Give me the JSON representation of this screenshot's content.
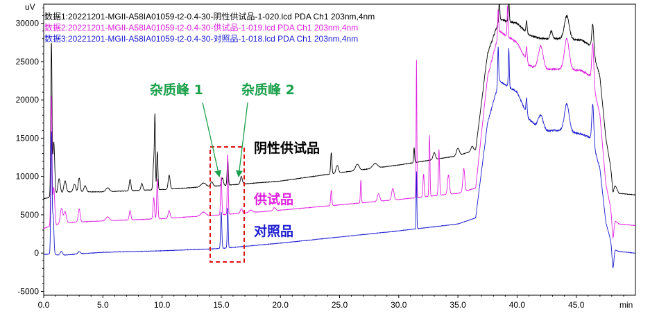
{
  "chart_data": {
    "type": "line",
    "y_unit": "uV",
    "x_unit": "min",
    "xlim": [
      0,
      50
    ],
    "ylim": [
      -5500,
      32500
    ],
    "x_ticks": [
      "0.0",
      "5.0",
      "10.0",
      "15.0",
      "20.0",
      "25.0",
      "30.0",
      "35.0",
      "40.0",
      "45.0"
    ],
    "x_tick_values": [
      0,
      5,
      10,
      15,
      20,
      25,
      30,
      35,
      40,
      45
    ],
    "y_ticks": [
      "-5000",
      "0",
      "5000",
      "10000",
      "15000",
      "20000",
      "25000",
      "30000"
    ],
    "y_tick_values": [
      -5000,
      0,
      5000,
      10000,
      15000,
      20000,
      25000,
      30000
    ],
    "legend_placement": "top-left",
    "legend": [
      "数据1:20221201-MGII-A58IA01059-t2-0.4-30-阴性供试品-1-020.lcd PDA Ch1 203nm,4nm",
      "数据2:20221201-MGII-A58IA01059-t2-0.4-30-供试品-1-019.lcd PDA Ch1 203nm,4nm",
      "数据3:20221201-MGII-A58IA01059-t2-0.4-30-对照品-1-018.lcd PDA Ch1 203nm,4nm"
    ],
    "series": [
      {
        "name": "阴性供试品",
        "color": "#000000",
        "baseline": [
          [
            0,
            7100
          ],
          [
            0.3,
            7200
          ],
          [
            0.6,
            7400
          ],
          [
            2,
            8000
          ],
          [
            5,
            8000
          ],
          [
            10,
            8300
          ],
          [
            15,
            8800
          ],
          [
            20,
            9400
          ],
          [
            25,
            10500
          ],
          [
            30,
            11500
          ],
          [
            35,
            12700
          ],
          [
            36.5,
            13500
          ],
          [
            37.5,
            26000
          ],
          [
            38.5,
            30500
          ],
          [
            40,
            30000
          ],
          [
            41,
            28500
          ],
          [
            42,
            28000
          ],
          [
            44,
            28000
          ],
          [
            45.5,
            27800
          ],
          [
            46.3,
            27000
          ],
          [
            47,
            23000
          ],
          [
            47.5,
            15000
          ],
          [
            48.1,
            9500
          ],
          [
            48.6,
            7800
          ],
          [
            50,
            7600
          ]
        ],
        "peaks": [
          [
            0.65,
            20000,
            0.05
          ],
          [
            0.85,
            7000,
            0.08
          ],
          [
            1.3,
            2000,
            0.1
          ],
          [
            1.8,
            1500,
            0.1
          ],
          [
            2.6,
            1000,
            0.1
          ],
          [
            3.0,
            1800,
            0.08
          ],
          [
            3.5,
            800,
            0.1
          ],
          [
            5.4,
            500,
            0.15
          ],
          [
            7.3,
            1500,
            0.07
          ],
          [
            8.3,
            900,
            0.08
          ],
          [
            9.3,
            3800,
            0.06
          ],
          [
            9.6,
            5000,
            0.05
          ],
          [
            9.4,
            9000,
            0.04
          ],
          [
            10.6,
            1800,
            0.08
          ],
          [
            13.5,
            500,
            0.2
          ],
          [
            14.2,
            600,
            0.1
          ],
          [
            15.1,
            1000,
            0.08
          ],
          [
            15.55,
            3500,
            0.05
          ],
          [
            16.7,
            1000,
            0.08
          ],
          [
            24.3,
            2800,
            0.05
          ],
          [
            24.8,
            1000,
            0.1
          ],
          [
            26.5,
            800,
            0.15
          ],
          [
            28,
            600,
            0.2
          ],
          [
            31.3,
            2000,
            0.04
          ],
          [
            33,
            900,
            0.1
          ],
          [
            35,
            1000,
            0.12
          ],
          [
            36.2,
            600,
            0.1
          ],
          [
            38.5,
            3000,
            0.04
          ],
          [
            39.3,
            3000,
            0.04
          ],
          [
            40.8,
            1500,
            0.05
          ],
          [
            42.9,
            1000,
            0.1
          ],
          [
            44.2,
            3000,
            0.2
          ],
          [
            46.4,
            3500,
            0.08
          ],
          [
            48.1,
            -1500,
            0.08
          ]
        ]
      },
      {
        "name": "供试品",
        "color": "#e020e0",
        "baseline": [
          [
            0,
            3200
          ],
          [
            0.3,
            3400
          ],
          [
            0.6,
            3500
          ],
          [
            2,
            4000
          ],
          [
            5,
            4200
          ],
          [
            10,
            4500
          ],
          [
            15,
            5000
          ],
          [
            20,
            5600
          ],
          [
            25,
            6300
          ],
          [
            30,
            7000
          ],
          [
            35,
            7800
          ],
          [
            36.5,
            8500
          ],
          [
            37.5,
            23000
          ],
          [
            38.5,
            29000
          ],
          [
            40,
            27500
          ],
          [
            41,
            24500
          ],
          [
            42,
            24000
          ],
          [
            44,
            24000
          ],
          [
            45.5,
            23800
          ],
          [
            46.3,
            23000
          ],
          [
            47,
            18000
          ],
          [
            47.5,
            9000
          ],
          [
            48.1,
            4500
          ],
          [
            48.6,
            3800
          ],
          [
            50,
            3600
          ]
        ],
        "peaks": [
          [
            0.65,
            17000,
            0.05
          ],
          [
            0.85,
            5000,
            0.08
          ],
          [
            1.5,
            2000,
            0.1
          ],
          [
            1.8,
            1500,
            0.1
          ],
          [
            3.0,
            1700,
            0.08
          ],
          [
            5.4,
            500,
            0.15
          ],
          [
            7.3,
            1200,
            0.07
          ],
          [
            9.3,
            2800,
            0.06
          ],
          [
            9.6,
            5200,
            0.05
          ],
          [
            10.6,
            1000,
            0.08
          ],
          [
            13.5,
            500,
            0.2
          ],
          [
            15.0,
            5000,
            0.05
          ],
          [
            15.55,
            8000,
            0.04
          ],
          [
            16.7,
            600,
            0.08
          ],
          [
            17.5,
            300,
            0.15
          ],
          [
            19.5,
            400,
            0.1
          ],
          [
            24.3,
            2000,
            0.05
          ],
          [
            26.8,
            3000,
            0.04
          ],
          [
            28.3,
            1000,
            0.1
          ],
          [
            29.5,
            1500,
            0.1
          ],
          [
            31.5,
            18000,
            0.03
          ],
          [
            32.1,
            3000,
            0.05
          ],
          [
            32.6,
            8000,
            0.04
          ],
          [
            33.4,
            6000,
            0.05
          ],
          [
            34.2,
            2500,
            0.08
          ],
          [
            35.5,
            3000,
            0.08
          ],
          [
            38.4,
            3500,
            0.04
          ],
          [
            39.2,
            4000,
            0.04
          ],
          [
            40.8,
            1800,
            0.05
          ],
          [
            42,
            3000,
            0.2
          ],
          [
            44.2,
            4000,
            0.2
          ],
          [
            46.4,
            5000,
            0.08
          ],
          [
            48.1,
            -2500,
            0.08
          ]
        ]
      },
      {
        "name": "对照品",
        "color": "#1a1ad0",
        "baseline": [
          [
            0,
            -200
          ],
          [
            0.5,
            -100
          ],
          [
            1.5,
            -300
          ],
          [
            3,
            -100
          ],
          [
            5,
            100
          ],
          [
            10,
            300
          ],
          [
            15,
            600
          ],
          [
            20,
            1300
          ],
          [
            25,
            2100
          ],
          [
            30,
            2900
          ],
          [
            35,
            3800
          ],
          [
            36.5,
            4600
          ],
          [
            37.5,
            17000
          ],
          [
            38.5,
            22500
          ],
          [
            40,
            21000
          ],
          [
            41,
            17500
          ],
          [
            42,
            16000
          ],
          [
            44,
            16000
          ],
          [
            45.5,
            15500
          ],
          [
            46.3,
            15000
          ],
          [
            47,
            11000
          ],
          [
            47.5,
            4000
          ],
          [
            48.1,
            600
          ],
          [
            48.6,
            200
          ],
          [
            50,
            0
          ]
        ],
        "peaks": [
          [
            0.65,
            16000,
            0.05
          ],
          [
            0.8,
            5000,
            0.06
          ],
          [
            1.5,
            500,
            0.1
          ],
          [
            3,
            300,
            0.1
          ],
          [
            15.0,
            4800,
            0.05
          ],
          [
            15.55,
            5300,
            0.04
          ],
          [
            31.5,
            7500,
            0.03
          ],
          [
            38.4,
            5000,
            0.04
          ],
          [
            39.3,
            5000,
            0.04
          ],
          [
            40.8,
            2000,
            0.05
          ],
          [
            42,
            2000,
            0.2
          ],
          [
            44.2,
            3500,
            0.2
          ],
          [
            46.4,
            5000,
            0.08
          ],
          [
            48.1,
            -2500,
            0.08
          ]
        ]
      }
    ]
  },
  "annotations": {
    "impurity_peak_1": "杂质峰 1",
    "impurity_peak_2": "杂质峰 2",
    "label_negative": "阴性供试品",
    "label_sample": "供试品",
    "label_reference": "对照品",
    "color_green": "#1aa04a",
    "color_red": "#e01010",
    "color_label_negative": "#000000",
    "color_label_sample": "#e020e0",
    "color_label_reference": "#1a1ad0"
  }
}
